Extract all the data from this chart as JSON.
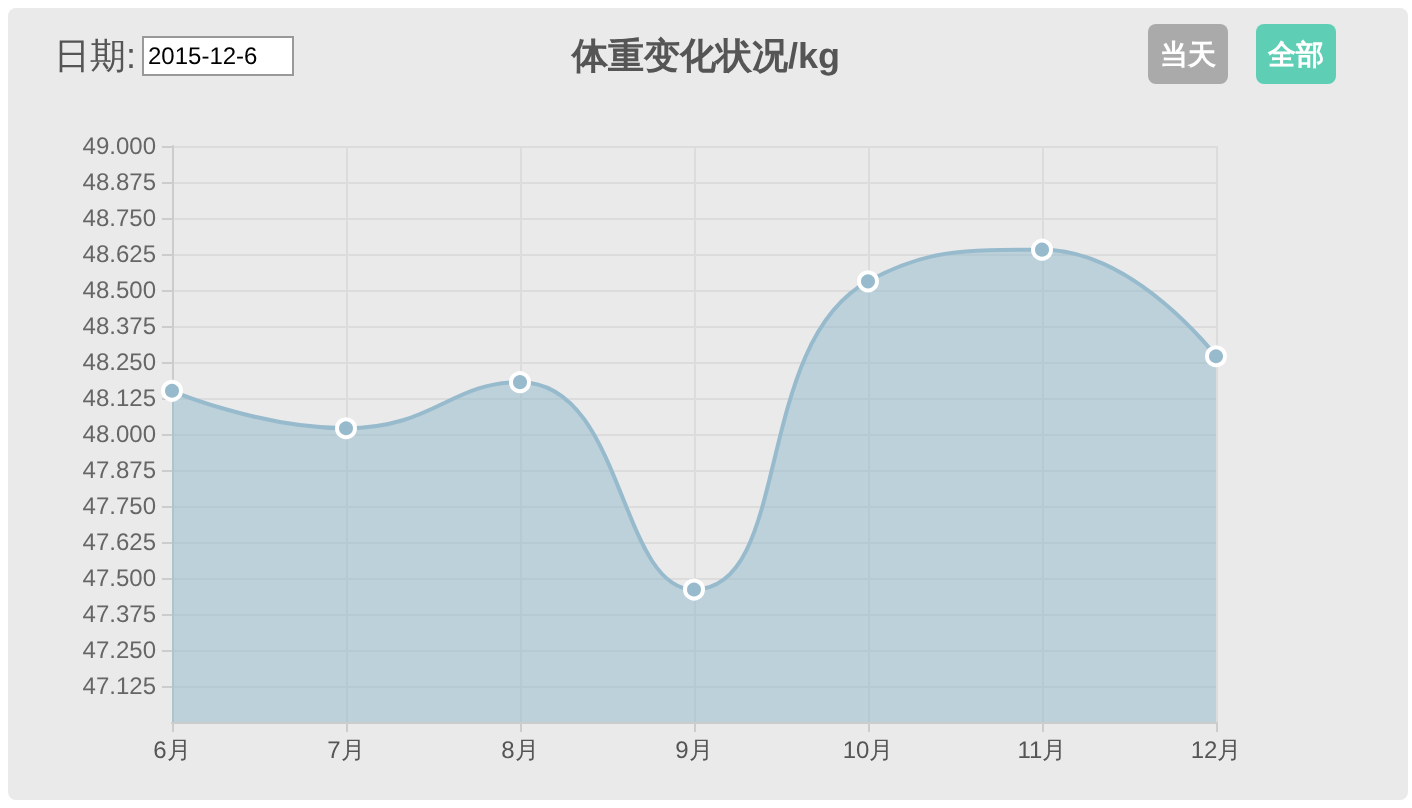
{
  "chart_data": {
    "type": "area",
    "title": "体重变化状况/kg",
    "annotations": [
      "日期:",
      "2015-12-6",
      "当天",
      "全部"
    ],
    "categories": [
      "6月",
      "7月",
      "8月",
      "9月",
      "10月",
      "11月",
      "12月"
    ],
    "series": [
      {
        "color": "#97bbcd",
        "values": [
          48.15,
          48.02,
          48.18,
          47.46,
          48.53,
          48.64,
          48.27
        ]
      }
    ],
    "ylim": [
      47,
      49
    ],
    "yticks": [
      {
        "value": 47.125,
        "label": "47.125"
      },
      {
        "value": 47.25,
        "label": "47.250"
      },
      {
        "value": 47.375,
        "label": "47.375"
      },
      {
        "value": 47.5,
        "label": "47.500"
      },
      {
        "value": 47.625,
        "label": "47.625"
      },
      {
        "value": 47.75,
        "label": "47.750"
      },
      {
        "value": 47.875,
        "label": "47.875"
      },
      {
        "value": 48,
        "label": "48.000"
      },
      {
        "value": 48.125,
        "label": "48.125"
      },
      {
        "value": 48.25,
        "label": "48.250"
      },
      {
        "value": 48.375,
        "label": "48.375"
      },
      {
        "value": 48.5,
        "label": "48.500"
      },
      {
        "value": 48.625,
        "label": "48.625"
      },
      {
        "value": 48.75,
        "label": "48.750"
      },
      {
        "value": 48.875,
        "label": "48.875"
      },
      {
        "value": 49,
        "label": "49.000"
      }
    ],
    "grid": true,
    "marker": "circle"
  }
}
